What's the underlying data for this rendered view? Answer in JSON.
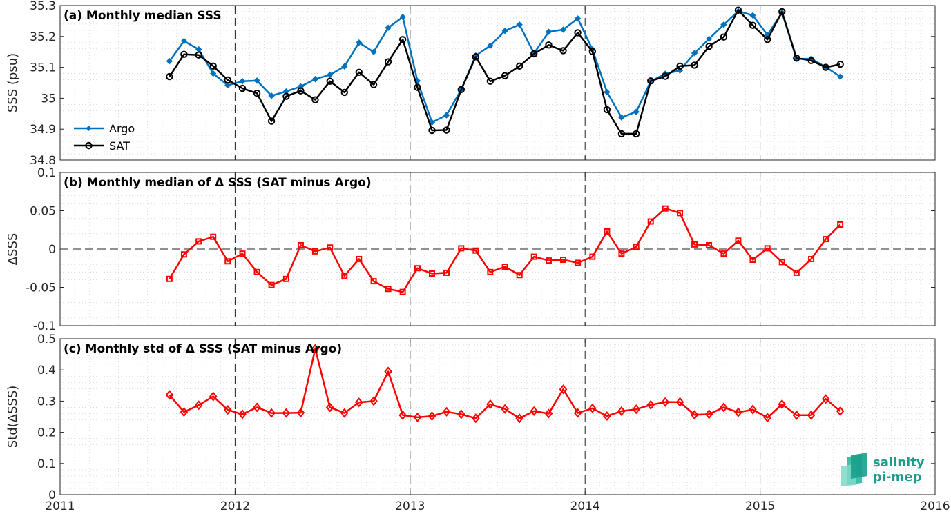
{
  "chart_data": [
    {
      "type": "line",
      "title": "(a) Monthly median SSS",
      "ylabel": "SSS (psu)",
      "xlim": [
        2011,
        2016
      ],
      "ylim": [
        34.8,
        35.3
      ],
      "xticks": [
        "2011",
        "2012",
        "2013",
        "2014",
        "2015",
        "2016"
      ],
      "yticks": [
        "34.8",
        "34.9",
        "35",
        "35.1",
        "35.2",
        "35.3"
      ],
      "grid": true,
      "legend": "bottom-left",
      "x": [
        2011.625,
        2011.708,
        2011.792,
        2011.875,
        2011.958,
        2012.042,
        2012.125,
        2012.208,
        2012.292,
        2012.375,
        2012.458,
        2012.542,
        2012.625,
        2012.708,
        2012.792,
        2012.875,
        2012.958,
        2013.042,
        2013.125,
        2013.208,
        2013.292,
        2013.375,
        2013.458,
        2013.542,
        2013.625,
        2013.708,
        2013.792,
        2013.875,
        2013.958,
        2014.042,
        2014.125,
        2014.208,
        2014.292,
        2014.375,
        2014.458,
        2014.542,
        2014.625,
        2014.708,
        2014.792,
        2014.875,
        2014.958,
        2015.042,
        2015.125,
        2015.208,
        2015.292,
        2015.375,
        2015.458
      ],
      "series": [
        {
          "name": "Argo",
          "color": "#0072bd",
          "marker": "diamond-filled",
          "values": [
            35.12,
            35.185,
            35.158,
            35.08,
            35.042,
            35.055,
            35.057,
            35.008,
            35.022,
            35.038,
            35.062,
            35.076,
            35.103,
            35.18,
            35.15,
            35.228,
            35.263,
            35.056,
            34.922,
            34.945,
            35.028,
            35.138,
            35.17,
            35.218,
            35.238,
            35.145,
            35.215,
            35.222,
            35.258,
            35.158,
            35.02,
            34.938,
            34.956,
            35.055,
            35.079,
            35.09,
            35.146,
            35.192,
            35.238,
            35.282,
            35.268,
            35.205,
            35.277,
            35.128,
            35.128,
            35.101,
            35.07
          ]
        },
        {
          "name": "SAT",
          "color": "#000000",
          "marker": "circle-open",
          "values": [
            35.07,
            35.142,
            35.14,
            35.104,
            35.059,
            35.032,
            35.016,
            34.926,
            35.006,
            35.024,
            34.995,
            35.055,
            35.019,
            35.084,
            35.044,
            35.118,
            35.19,
            35.035,
            34.896,
            34.897,
            35.028,
            35.134,
            35.055,
            35.073,
            35.104,
            35.144,
            35.172,
            35.154,
            35.212,
            35.151,
            34.963,
            34.885,
            34.885,
            35.056,
            35.071,
            35.104,
            35.107,
            35.168,
            35.198,
            35.285,
            35.236,
            35.19,
            35.28,
            35.13,
            35.122,
            35.1,
            35.11
          ]
        }
      ]
    },
    {
      "type": "line",
      "title": "(b) Monthly median of Δ SSS (SAT minus Argo)",
      "ylabel": "ΔSSS",
      "xlim": [
        2011,
        2016
      ],
      "ylim": [
        -0.1,
        0.1
      ],
      "xticks": [
        "2011",
        "2012",
        "2013",
        "2014",
        "2015",
        "2016"
      ],
      "yticks": [
        "-0.1",
        "-0.05",
        "0",
        "0.05",
        "0.1"
      ],
      "grid": true,
      "zero_line": true,
      "x": [
        2011.625,
        2011.708,
        2011.792,
        2011.875,
        2011.958,
        2012.042,
        2012.125,
        2012.208,
        2012.292,
        2012.375,
        2012.458,
        2012.542,
        2012.625,
        2012.708,
        2012.792,
        2012.875,
        2012.958,
        2013.042,
        2013.125,
        2013.208,
        2013.292,
        2013.375,
        2013.458,
        2013.542,
        2013.625,
        2013.708,
        2013.792,
        2013.875,
        2013.958,
        2014.042,
        2014.125,
        2014.208,
        2014.292,
        2014.375,
        2014.458,
        2014.542,
        2014.625,
        2014.708,
        2014.792,
        2014.875,
        2014.958,
        2015.042,
        2015.125,
        2015.208,
        2015.292,
        2015.375,
        2015.458
      ],
      "series": [
        {
          "color": "#ff0000",
          "marker": "square-open",
          "values": [
            -0.039,
            -0.007,
            0.01,
            0.016,
            -0.016,
            -0.006,
            -0.03,
            -0.047,
            -0.039,
            0.005,
            -0.003,
            0.002,
            -0.035,
            -0.013,
            -0.042,
            -0.052,
            -0.056,
            -0.025,
            -0.032,
            -0.031,
            0.001,
            -0.002,
            -0.03,
            -0.023,
            -0.034,
            -0.01,
            -0.015,
            -0.014,
            -0.018,
            -0.01,
            0.023,
            -0.006,
            0.003,
            0.036,
            0.053,
            0.047,
            0.006,
            0.005,
            -0.006,
            0.011,
            -0.014,
            0.001,
            -0.017,
            -0.031,
            -0.013,
            0.013,
            0.032
          ]
        }
      ]
    },
    {
      "type": "line",
      "title": "(c) Monthly std of Δ SSS (SAT minus Argo)",
      "ylabel": "Std(ΔSSS)",
      "xlim": [
        2011,
        2016
      ],
      "ylim": [
        0,
        0.5
      ],
      "xticks": [
        "2011",
        "2012",
        "2013",
        "2014",
        "2015",
        "2016"
      ],
      "yticks": [
        "0",
        "0.1",
        "0.2",
        "0.3",
        "0.4",
        "0.5"
      ],
      "grid": true,
      "x": [
        2011.625,
        2011.708,
        2011.792,
        2011.875,
        2011.958,
        2012.042,
        2012.125,
        2012.208,
        2012.292,
        2012.375,
        2012.458,
        2012.542,
        2012.625,
        2012.708,
        2012.792,
        2012.875,
        2012.958,
        2013.042,
        2013.125,
        2013.208,
        2013.292,
        2013.375,
        2013.458,
        2013.542,
        2013.625,
        2013.708,
        2013.792,
        2013.875,
        2013.958,
        2014.042,
        2014.125,
        2014.208,
        2014.292,
        2014.375,
        2014.458,
        2014.542,
        2014.625,
        2014.708,
        2014.792,
        2014.875,
        2014.958,
        2015.042,
        2015.125,
        2015.208,
        2015.292,
        2015.375,
        2015.458
      ],
      "series": [
        {
          "color": "#ff0000",
          "marker": "diamond-open",
          "values": [
            0.32,
            0.265,
            0.287,
            0.315,
            0.272,
            0.258,
            0.28,
            0.262,
            0.262,
            0.263,
            0.468,
            0.28,
            0.262,
            0.296,
            0.3,
            0.395,
            0.255,
            0.248,
            0.252,
            0.266,
            0.258,
            0.245,
            0.29,
            0.275,
            0.245,
            0.268,
            0.26,
            0.338,
            0.262,
            0.277,
            0.252,
            0.268,
            0.274,
            0.288,
            0.297,
            0.297,
            0.256,
            0.258,
            0.28,
            0.264,
            0.273,
            0.247,
            0.29,
            0.255,
            0.255,
            0.307,
            0.268
          ]
        }
      ]
    }
  ],
  "logo": {
    "line1": "salinity",
    "line2": "pi-mep"
  }
}
